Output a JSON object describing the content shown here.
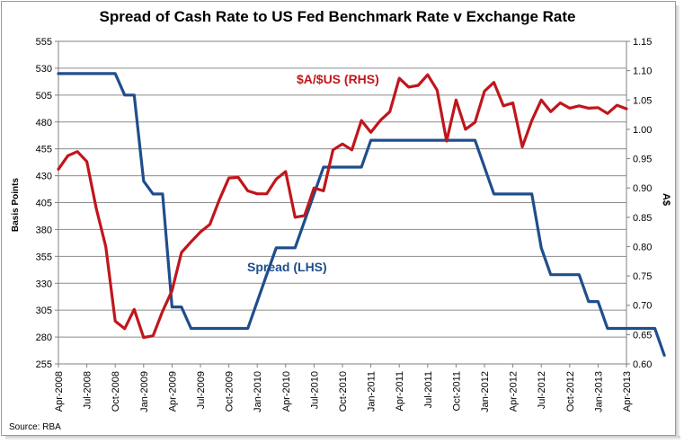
{
  "chart_data": {
    "type": "line",
    "title": "Spread of Cash Rate to US Fed Benchmark Rate v Exchange Rate",
    "source": "Source: RBA",
    "ylabel_left": "Basis Points",
    "ylabel_right": "A$",
    "yleft_range": [
      255,
      555
    ],
    "yleft_ticks": [
      "555",
      "530",
      "505",
      "480",
      "455",
      "430",
      "405",
      "380",
      "355",
      "330",
      "305",
      "280",
      "255"
    ],
    "yright_range": [
      0.6,
      1.15
    ],
    "yright_ticks": [
      "1.15",
      "1.10",
      "1.05",
      "1.00",
      "0.95",
      "0.90",
      "0.85",
      "0.80",
      "0.75",
      "0.70",
      "0.65",
      "0.60"
    ],
    "x_tick_labels": [
      "Apr-2008",
      "Jul-2008",
      "Oct-2008",
      "Jan-2009",
      "Apr-2009",
      "Jul-2009",
      "Oct-2009",
      "Jan-2010",
      "Apr-2010",
      "Jul-2010",
      "Oct-2010",
      "Jan-2011",
      "Apr-2011",
      "Jul-2011",
      "Oct-2011",
      "Jan-2012",
      "Apr-2012",
      "Jul-2012",
      "Oct-2012",
      "Jan-2013",
      "Apr-2013"
    ],
    "series": [
      {
        "name": "Spread (LHS)",
        "axis": "left",
        "color": "#1f4e8c",
        "points": [
          [
            0,
            525
          ],
          [
            6,
            525
          ],
          [
            7,
            505
          ],
          [
            8,
            505
          ],
          [
            9,
            425
          ],
          [
            10,
            413
          ],
          [
            11,
            413
          ],
          [
            12,
            308
          ],
          [
            13,
            308
          ],
          [
            14,
            288
          ],
          [
            20,
            288
          ],
          [
            21,
            313
          ],
          [
            22,
            338
          ],
          [
            23,
            363
          ],
          [
            25,
            363
          ],
          [
            26,
            388
          ],
          [
            27,
            413
          ],
          [
            28,
            438
          ],
          [
            32,
            438
          ],
          [
            33,
            463
          ],
          [
            44,
            463
          ],
          [
            45,
            438
          ],
          [
            46,
            413
          ],
          [
            50,
            413
          ],
          [
            51,
            363
          ],
          [
            52,
            338
          ],
          [
            55,
            338
          ],
          [
            56,
            313
          ],
          [
            57,
            313
          ],
          [
            58,
            288
          ],
          [
            63,
            288
          ],
          [
            64,
            263
          ]
        ]
      },
      {
        "name": "$A/$US (RHS)",
        "axis": "right",
        "color": "#c0161c",
        "points": [
          [
            0,
            0.932
          ],
          [
            1,
            0.955
          ],
          [
            2,
            0.962
          ],
          [
            3,
            0.945
          ],
          [
            4,
            0.865
          ],
          [
            5,
            0.8
          ],
          [
            6,
            0.673
          ],
          [
            7,
            0.66
          ],
          [
            8,
            0.693
          ],
          [
            9,
            0.645
          ],
          [
            10,
            0.648
          ],
          [
            11,
            0.69
          ],
          [
            12,
            0.725
          ],
          [
            13,
            0.79
          ],
          [
            14,
            0.808
          ],
          [
            15,
            0.825
          ],
          [
            16,
            0.838
          ],
          [
            17,
            0.88
          ],
          [
            18,
            0.917
          ],
          [
            19,
            0.918
          ],
          [
            20,
            0.895
          ],
          [
            21,
            0.89
          ],
          [
            22,
            0.89
          ],
          [
            23,
            0.915
          ],
          [
            24,
            0.928
          ],
          [
            25,
            0.85
          ],
          [
            26,
            0.853
          ],
          [
            27,
            0.9
          ],
          [
            28,
            0.895
          ],
          [
            29,
            0.965
          ],
          [
            30,
            0.975
          ],
          [
            31,
            0.965
          ],
          [
            32,
            1.015
          ],
          [
            33,
            0.995
          ],
          [
            34,
            1.015
          ],
          [
            35,
            1.03
          ],
          [
            36,
            1.087
          ],
          [
            37,
            1.072
          ],
          [
            38,
            1.075
          ],
          [
            39,
            1.093
          ],
          [
            40,
            1.067
          ],
          [
            41,
            0.98
          ],
          [
            42,
            1.05
          ],
          [
            43,
            1.0
          ],
          [
            44,
            1.012
          ],
          [
            45,
            1.065
          ],
          [
            46,
            1.08
          ],
          [
            47,
            1.04
          ],
          [
            48,
            1.045
          ],
          [
            49,
            0.97
          ],
          [
            50,
            1.015
          ],
          [
            51,
            1.05
          ],
          [
            52,
            1.03
          ],
          [
            53,
            1.045
          ],
          [
            54,
            1.036
          ],
          [
            55,
            1.04
          ],
          [
            56,
            1.036
          ],
          [
            57,
            1.037
          ],
          [
            58,
            1.027
          ],
          [
            59,
            1.041
          ],
          [
            60,
            1.035
          ]
        ]
      }
    ],
    "annotations": [
      "$A/$US (RHS)",
      "Spread (LHS)"
    ],
    "grid": true
  }
}
